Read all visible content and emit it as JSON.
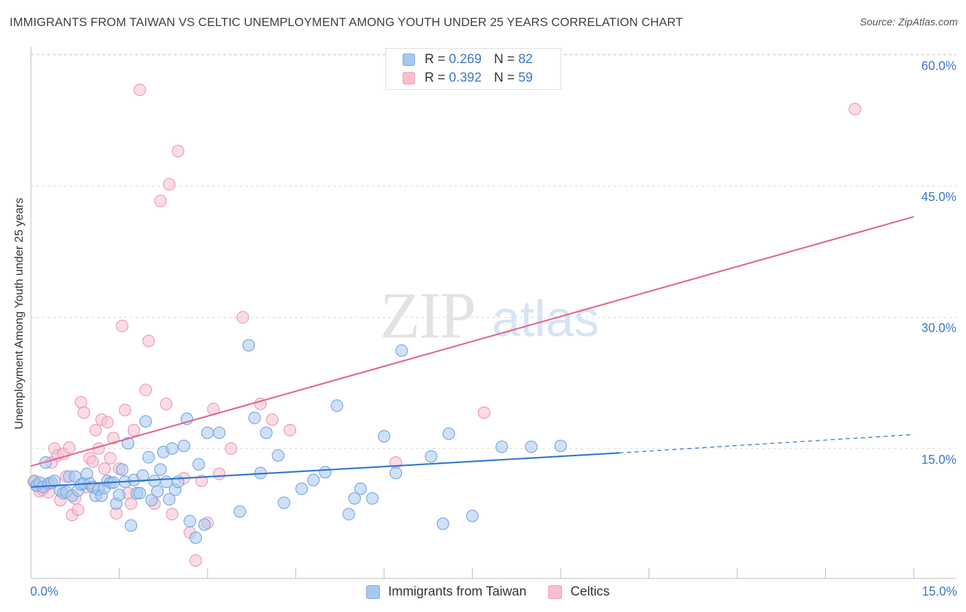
{
  "title": "IMMIGRANTS FROM TAIWAN VS CELTIC UNEMPLOYMENT AMONG YOUTH UNDER 25 YEARS CORRELATION CHART",
  "source": "Source: ZipAtlas.com",
  "watermark": {
    "zip": "ZIP",
    "atlas": "atlas"
  },
  "legend_top": {
    "rows": [
      {
        "r_label": "R =",
        "r_value": "0.269",
        "n_label": "N =",
        "n_value": "82"
      },
      {
        "r_label": "R =",
        "r_value": "0.392",
        "n_label": "N =",
        "n_value": "59"
      }
    ]
  },
  "colors": {
    "blue_fill": "#a8c8f0",
    "blue_stroke": "#7aa6dc",
    "blue_line": "#2f74cf",
    "pink_fill": "#f6bfd1",
    "pink_stroke": "#ec9ab6",
    "pink_line": "#e0668f",
    "tick_text": "#3a78c9",
    "grid": "#d8d8d8"
  },
  "chart_data": {
    "type": "scatter",
    "title": "IMMIGRANTS FROM TAIWAN VS CELTIC UNEMPLOYMENT AMONG YOUTH UNDER 25 YEARS CORRELATION CHART",
    "xlabel": "",
    "ylabel": "Unemployment Among Youth under 25 years",
    "xlim": [
      0,
      15
    ],
    "ylim": [
      0,
      60
    ],
    "x_tick_labels": [
      "0.0%",
      "15.0%"
    ],
    "y_ticks": [
      15,
      30,
      45,
      60
    ],
    "y_tick_labels": [
      "15.0%",
      "30.0%",
      "45.0%",
      "60.0%"
    ],
    "grid": true,
    "legend_position": "bottom",
    "series": [
      {
        "name": "Immigrants from Taiwan",
        "color": "#a8c8f0",
        "trend": {
          "x": [
            0,
            10
          ],
          "y": [
            10.6,
            14.5
          ],
          "dashed_to": [
            15,
            16.6
          ]
        },
        "points": [
          [
            0.06,
            11.3
          ],
          [
            0.1,
            10.8
          ],
          [
            0.15,
            11.1
          ],
          [
            0.2,
            10.6
          ],
          [
            0.25,
            13.4
          ],
          [
            0.3,
            11.0
          ],
          [
            0.35,
            11.1
          ],
          [
            0.4,
            11.3
          ],
          [
            0.5,
            10.2
          ],
          [
            0.55,
            9.9
          ],
          [
            0.6,
            10.0
          ],
          [
            0.65,
            11.8
          ],
          [
            0.7,
            9.6
          ],
          [
            0.75,
            11.8
          ],
          [
            0.8,
            10.2
          ],
          [
            0.85,
            10.9
          ],
          [
            0.9,
            11.0
          ],
          [
            0.95,
            12.1
          ],
          [
            1.0,
            11.0
          ],
          [
            1.05,
            10.6
          ],
          [
            1.1,
            9.6
          ],
          [
            1.15,
            10.3
          ],
          [
            1.2,
            9.6
          ],
          [
            1.25,
            10.5
          ],
          [
            1.3,
            11.3
          ],
          [
            1.35,
            11.1
          ],
          [
            1.4,
            11.1
          ],
          [
            1.45,
            8.7
          ],
          [
            1.5,
            9.7
          ],
          [
            1.55,
            12.6
          ],
          [
            1.6,
            11.2
          ],
          [
            1.65,
            15.6
          ],
          [
            1.7,
            6.2
          ],
          [
            1.75,
            11.4
          ],
          [
            1.8,
            9.9
          ],
          [
            1.85,
            9.9
          ],
          [
            1.9,
            11.9
          ],
          [
            1.95,
            18.1
          ],
          [
            2.0,
            14.0
          ],
          [
            2.05,
            9.1
          ],
          [
            2.1,
            11.3
          ],
          [
            2.15,
            10.1
          ],
          [
            2.2,
            12.6
          ],
          [
            2.25,
            14.6
          ],
          [
            2.3,
            11.2
          ],
          [
            2.35,
            9.2
          ],
          [
            2.4,
            15.0
          ],
          [
            2.45,
            10.3
          ],
          [
            2.5,
            11.2
          ],
          [
            2.6,
            15.3
          ],
          [
            2.65,
            18.4
          ],
          [
            2.7,
            6.7
          ],
          [
            2.8,
            4.8
          ],
          [
            2.85,
            13.2
          ],
          [
            2.95,
            6.3
          ],
          [
            3.0,
            16.8
          ],
          [
            3.2,
            16.8
          ],
          [
            3.55,
            7.8
          ],
          [
            3.7,
            26.8
          ],
          [
            3.8,
            18.5
          ],
          [
            3.9,
            12.2
          ],
          [
            4.0,
            16.8
          ],
          [
            4.3,
            8.8
          ],
          [
            4.6,
            10.4
          ],
          [
            4.8,
            11.4
          ],
          [
            5.0,
            12.3
          ],
          [
            5.2,
            19.9
          ],
          [
            5.4,
            7.5
          ],
          [
            5.6,
            10.4
          ],
          [
            5.8,
            9.3
          ],
          [
            6.0,
            16.4
          ],
          [
            6.2,
            12.2
          ],
          [
            6.3,
            26.2
          ],
          [
            6.8,
            14.1
          ],
          [
            7.0,
            6.4
          ],
          [
            7.1,
            16.7
          ],
          [
            7.5,
            7.3
          ],
          [
            8.0,
            15.2
          ],
          [
            8.5,
            15.2
          ],
          [
            9.0,
            15.3
          ],
          [
            4.2,
            14.2
          ],
          [
            5.5,
            9.3
          ]
        ]
      },
      {
        "name": "Celtics",
        "color": "#f6bfd1",
        "trend": {
          "x": [
            0,
            15
          ],
          "y": [
            13.0,
            41.5
          ]
        },
        "points": [
          [
            0.05,
            11.2
          ],
          [
            0.1,
            10.7
          ],
          [
            0.15,
            10.1
          ],
          [
            0.2,
            10.3
          ],
          [
            0.25,
            10.7
          ],
          [
            0.3,
            10.0
          ],
          [
            0.35,
            13.4
          ],
          [
            0.4,
            15.0
          ],
          [
            0.45,
            14.2
          ],
          [
            0.5,
            9.1
          ],
          [
            0.55,
            14.4
          ],
          [
            0.6,
            11.8
          ],
          [
            0.65,
            15.1
          ],
          [
            0.7,
            7.4
          ],
          [
            0.75,
            9.3
          ],
          [
            0.8,
            8.0
          ],
          [
            0.85,
            20.3
          ],
          [
            0.9,
            19.1
          ],
          [
            0.95,
            10.6
          ],
          [
            1.0,
            13.9
          ],
          [
            1.05,
            13.5
          ],
          [
            1.1,
            17.1
          ],
          [
            1.15,
            15.0
          ],
          [
            1.2,
            18.3
          ],
          [
            1.25,
            12.7
          ],
          [
            1.3,
            18.0
          ],
          [
            1.35,
            13.9
          ],
          [
            1.4,
            16.2
          ],
          [
            1.45,
            7.6
          ],
          [
            1.5,
            12.7
          ],
          [
            1.55,
            29.0
          ],
          [
            1.6,
            19.4
          ],
          [
            1.65,
            9.9
          ],
          [
            1.7,
            8.7
          ],
          [
            1.75,
            17.1
          ],
          [
            1.85,
            56.0
          ],
          [
            1.95,
            21.7
          ],
          [
            2.0,
            27.3
          ],
          [
            2.1,
            8.7
          ],
          [
            2.2,
            43.3
          ],
          [
            2.3,
            20.1
          ],
          [
            2.35,
            45.2
          ],
          [
            2.4,
            7.5
          ],
          [
            2.5,
            49.0
          ],
          [
            2.6,
            11.6
          ],
          [
            2.7,
            5.4
          ],
          [
            2.8,
            2.2
          ],
          [
            2.9,
            11.3
          ],
          [
            3.0,
            6.5
          ],
          [
            3.1,
            19.5
          ],
          [
            3.2,
            12.1
          ],
          [
            3.4,
            15.0
          ],
          [
            3.6,
            30.0
          ],
          [
            3.9,
            20.1
          ],
          [
            4.1,
            18.3
          ],
          [
            4.4,
            17.1
          ],
          [
            6.2,
            13.4
          ],
          [
            7.7,
            19.1
          ],
          [
            14.0,
            53.8
          ]
        ]
      }
    ]
  },
  "axes": {
    "ylabel": "Unemployment Among Youth under 25 years",
    "y_tick_labels": [
      "60.0%",
      "45.0%",
      "30.0%",
      "15.0%"
    ],
    "x_tick_left": "0.0%",
    "x_tick_right": "15.0%"
  },
  "legend_bottom": [
    {
      "label": "Immigrants from Taiwan"
    },
    {
      "label": "Celtics"
    }
  ]
}
